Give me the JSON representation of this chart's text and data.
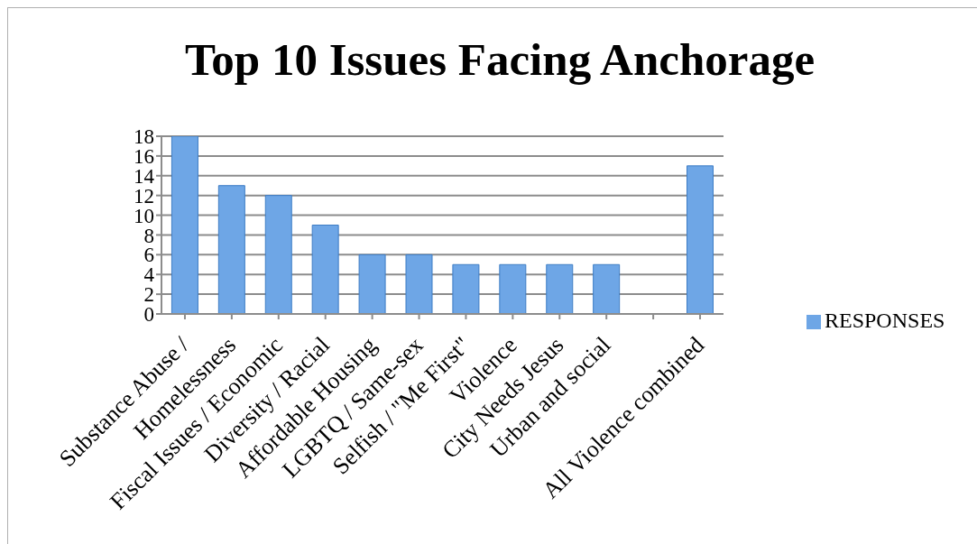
{
  "chart_data": {
    "type": "bar",
    "title": "Top 10 Issues Facing Anchorage",
    "categories": [
      "Substance Abuse /",
      "Homelessness",
      "Fiscal Issues / Economic",
      "Diversity / Racial",
      "Affordable Housing",
      "LGBTQ / Same-sex",
      "Selfish / \"Me First\"",
      "Violence",
      "City Needs Jesus",
      "Urban and social",
      null,
      "All Violence combined"
    ],
    "series": [
      {
        "name": "RESPONSES",
        "color": "#6ea6e6",
        "values": [
          18,
          13,
          12,
          9,
          6,
          6,
          5,
          5,
          5,
          5,
          null,
          15
        ]
      }
    ],
    "ylim": [
      0,
      18
    ],
    "yticks": [
      0,
      2,
      4,
      6,
      8,
      10,
      12,
      14,
      16,
      18
    ],
    "grid": "y",
    "legend": "right"
  }
}
